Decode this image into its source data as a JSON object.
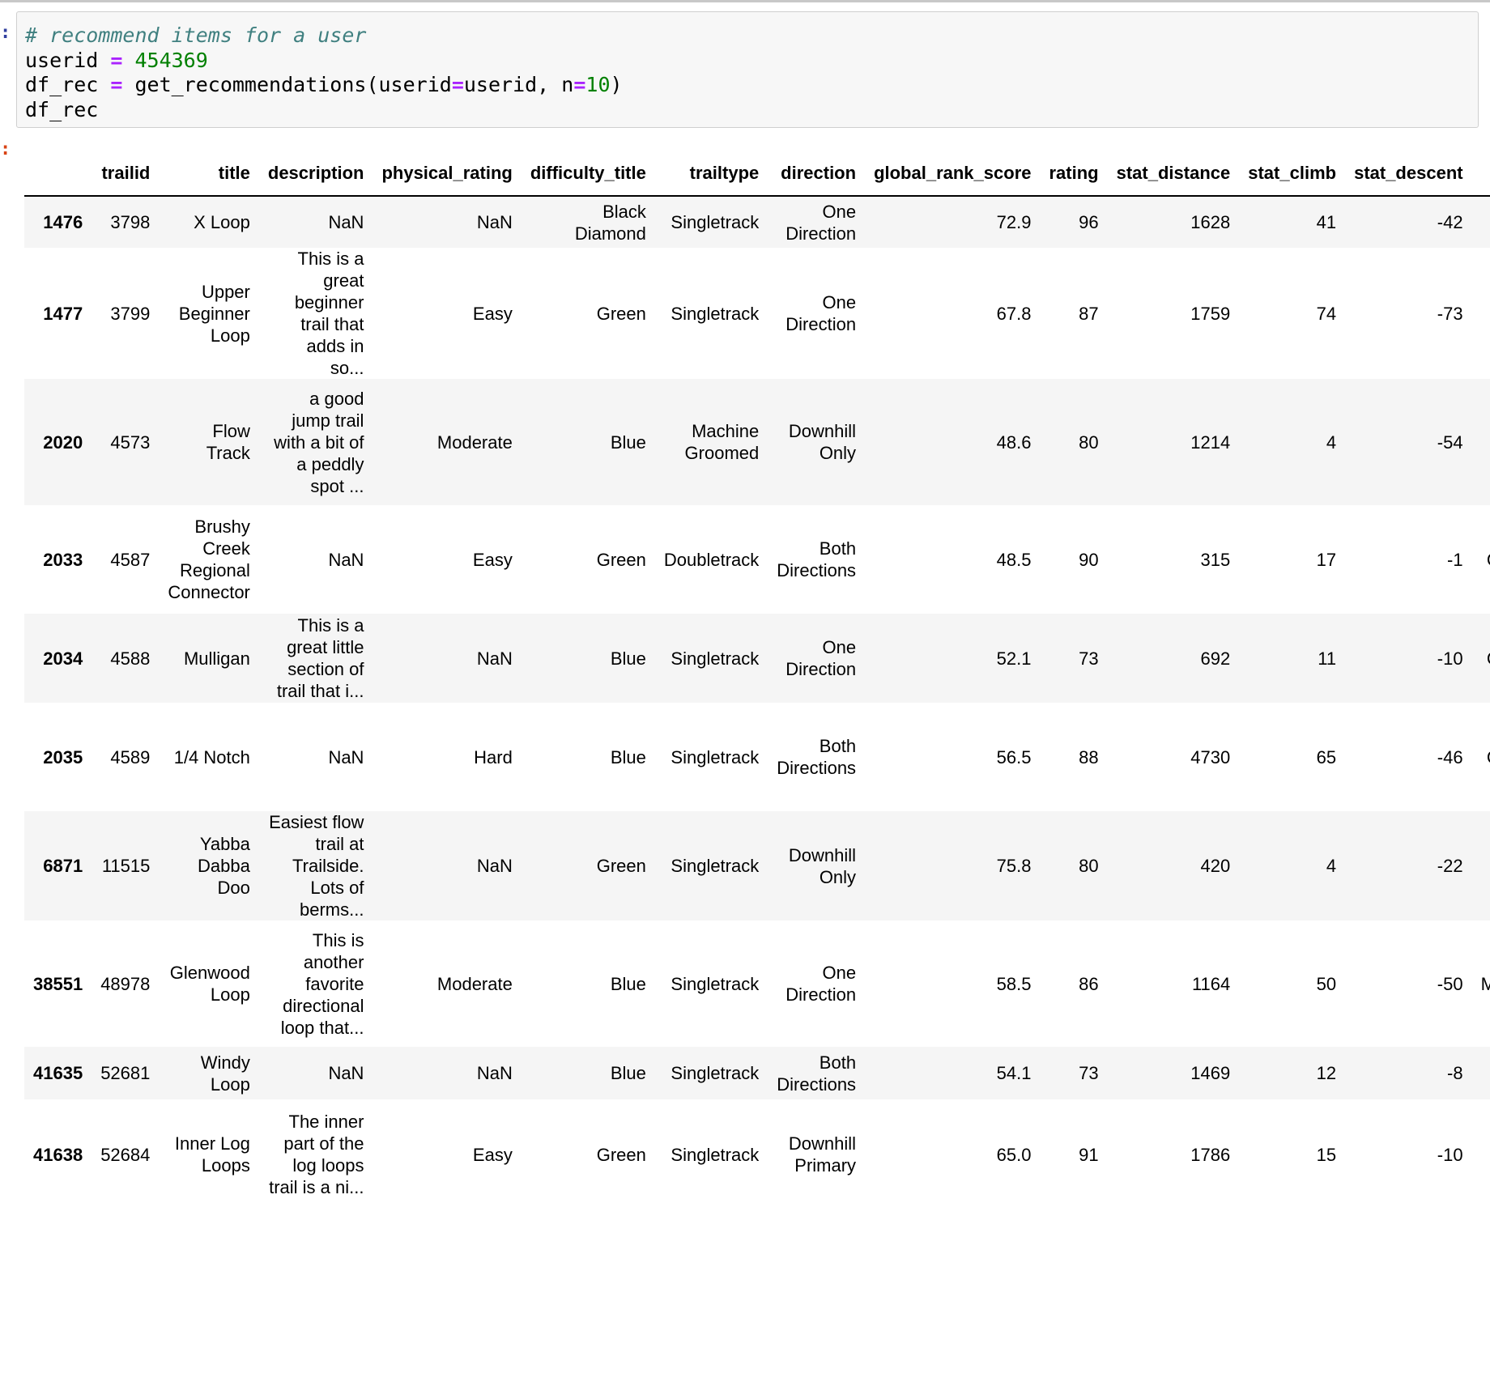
{
  "cell": {
    "input_prompt": ":",
    "output_prompt": ":",
    "code": {
      "line1_comment": "# recommend items for a user",
      "line2_var": "userid ",
      "line2_op": "=",
      "line2_val": " 454369",
      "line3_a": "df_rec ",
      "line3_op1": "=",
      "line3_b": " get_recommendations(userid",
      "line3_op2": "=",
      "line3_c": "userid, n",
      "line3_op3": "=",
      "line3_val": "10",
      "line3_d": ")",
      "line4": "df_rec"
    }
  },
  "table": {
    "columns": [
      "",
      "trailid",
      "title",
      "description",
      "physical_rating",
      "difficulty_title",
      "trailtype",
      "direction",
      "global_rank_score",
      "rating",
      "stat_distance",
      "stat_climb",
      "stat_descent",
      ""
    ],
    "rows": [
      {
        "index": "1476",
        "cells": [
          "3798",
          "X Loop",
          "NaN",
          "NaN",
          "Black Diamond",
          "Singletrack",
          "One Direction",
          "72.9",
          "96",
          "1628",
          "41",
          "-42",
          ""
        ]
      },
      {
        "index": "1477",
        "cells": [
          "3799",
          "Upper Beginner Loop",
          "This is a great beginner trail that adds in so...",
          "Easy",
          "Green",
          "Singletrack",
          "One Direction",
          "67.8",
          "87",
          "1759",
          "74",
          "-73",
          ""
        ]
      },
      {
        "index": "2020",
        "cells": [
          "4573",
          "Flow Track",
          "a good jump trail with a bit of a peddly spot ...",
          "Moderate",
          "Blue",
          "Machine Groomed",
          "Downhill Only",
          "48.6",
          "80",
          "1214",
          "4",
          "-54",
          ""
        ]
      },
      {
        "index": "2033",
        "cells": [
          "4587",
          "Brushy Creek Regional Connector",
          "NaN",
          "Easy",
          "Green",
          "Doubletrack",
          "Both Directions",
          "48.5",
          "90",
          "315",
          "17",
          "-1",
          "C"
        ]
      },
      {
        "index": "2034",
        "cells": [
          "4588",
          "Mulligan",
          "This is a great little section of trail that i...",
          "NaN",
          "Blue",
          "Singletrack",
          "One Direction",
          "52.1",
          "73",
          "692",
          "11",
          "-10",
          "C"
        ]
      },
      {
        "index": "2035",
        "cells": [
          "4589",
          "1/4 Notch",
          "NaN",
          "Hard",
          "Blue",
          "Singletrack",
          "Both Directions",
          "56.5",
          "88",
          "4730",
          "65",
          "-46",
          "C"
        ]
      },
      {
        "index": "6871",
        "cells": [
          "11515",
          "Yabba Dabba Doo",
          "Easiest flow trail at Trailside. Lots of berms...",
          "NaN",
          "Green",
          "Singletrack",
          "Downhill Only",
          "75.8",
          "80",
          "420",
          "4",
          "-22",
          ""
        ]
      },
      {
        "index": "38551",
        "cells": [
          "48978",
          "Glenwood Loop",
          "This is another favorite directional loop that...",
          "Moderate",
          "Blue",
          "Singletrack",
          "One Direction",
          "58.5",
          "86",
          "1164",
          "50",
          "-50",
          "Mi"
        ]
      },
      {
        "index": "41635",
        "cells": [
          "52681",
          "Windy Loop",
          "NaN",
          "NaN",
          "Blue",
          "Singletrack",
          "Both Directions",
          "54.1",
          "73",
          "1469",
          "12",
          "-8",
          ""
        ]
      },
      {
        "index": "41638",
        "cells": [
          "52684",
          "Inner Log Loops",
          "The inner part of the log loops trail is a ni...",
          "Easy",
          "Green",
          "Singletrack",
          "Downhill Primary",
          "65.0",
          "91",
          "1786",
          "15",
          "-10",
          ""
        ]
      }
    ]
  }
}
